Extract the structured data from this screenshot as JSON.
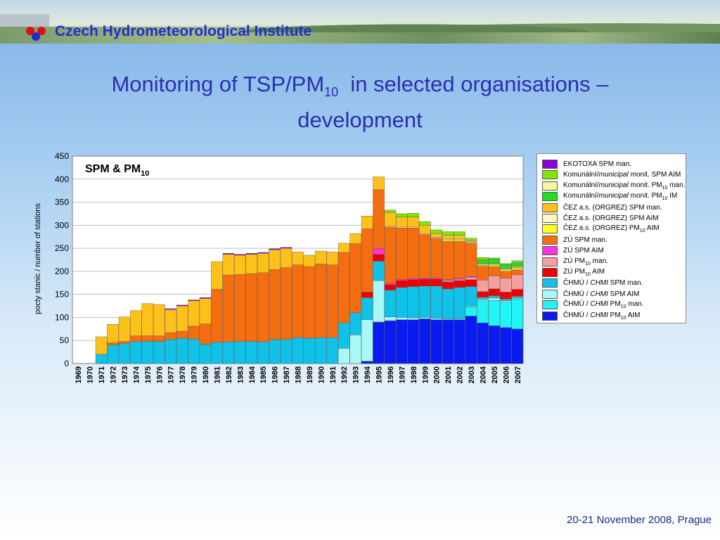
{
  "header": {
    "institute": "Czech Hydrometeorological Institute"
  },
  "title": {
    "line1_a": "Monitoring of TSP/PM",
    "line1_sub": "10",
    "line1_b": "in selected organisations –",
    "line2": "development"
  },
  "footer": {
    "text": "20-21 November 2008, Prague"
  },
  "legend_colors": {
    "EKOTOXA SPM man.": "#8b00d9",
    "Komunální/municipal monit. SPM AIM": "#80e800",
    "Komunální/municipal monit. PM10 man.": "#f2f8a0",
    "Komunální/municipal monit. PM10 IM": "#22dd22",
    "ČEZ a.s. (ORGREZ) SPM man.": "#fdc11a",
    "ČEZ a.s. (ORGREZ) SPM AIM": "#fdf9c8",
    "ČEZ a.s. (ORGREZ) PM10 AIM": "#ffff22",
    "ZÚ SPM man.": "#f46d10",
    "ZÚ SPM AIM": "#ff33dd",
    "ZÚ PM10 man.": "#f5a0a0",
    "ZÚ PM10 AIM": "#ee0000",
    "ČHMÚ / CHMI SPM man.": "#10c2e8",
    "ČHMÚ / CHMI SPM AIM": "#a8f8f8",
    "ČHMÚ / CHMI PM10 man.": "#20f4f4",
    "ČHMÚ / CHMI PM10 AIM": "#0a1bef"
  },
  "chart_data": {
    "type": "bar",
    "stacked": true,
    "title": "SPM & PM",
    "title_sub": "10",
    "xlabel": "",
    "ylabel": "pocty stanic / number of stations",
    "ylim": [
      0,
      450
    ],
    "yticks": [
      0,
      50,
      100,
      150,
      200,
      250,
      300,
      350,
      400,
      450
    ],
    "grid": true,
    "legend_position": "right",
    "categories": [
      "1969",
      "1970",
      "1971",
      "1972",
      "1973",
      "1974",
      "1975",
      "1976",
      "1977",
      "1978",
      "1979",
      "1980",
      "1981",
      "1982",
      "1983",
      "1984",
      "1985",
      "1986",
      "1987",
      "1988",
      "1989",
      "1990",
      "1991",
      "1992",
      "1993",
      "1994",
      "1995",
      "1996",
      "1997",
      "1998",
      "1999",
      "2000",
      "2001",
      "2002",
      "2003",
      "2004",
      "2005",
      "2006",
      "2007"
    ],
    "legend": [
      {
        "name": "EKOTOXA SPM man.",
        "pre": "EKOTOXA SPM man.",
        "it": "",
        "post": "",
        "sub": "",
        "post2": ""
      },
      {
        "name": "Komunální/municipal monit. SPM AIM",
        "pre": "Komunální/",
        "it": "municipal",
        "post": " monit. SPM AIM",
        "sub": "",
        "post2": ""
      },
      {
        "name": "Komunální/municipal monit. PM10 man.",
        "pre": "Komunální/",
        "it": "municipal",
        "post": " monit. PM",
        "sub": "10",
        "post2": " man."
      },
      {
        "name": "Komunální/municipal monit. PM10 IM",
        "pre": "Komunální/",
        "it": "municipal",
        "post": " monit. PM",
        "sub": "10",
        "post2": " IM"
      },
      {
        "name": "ČEZ a.s. (ORGREZ) SPM man.",
        "pre": "ČEZ a.s. (ORGREZ) SPM man.",
        "it": "",
        "post": "",
        "sub": "",
        "post2": ""
      },
      {
        "name": "ČEZ a.s. (ORGREZ) SPM AIM",
        "pre": "ČEZ a.s. (ORGREZ) SPM AIM",
        "it": "",
        "post": "",
        "sub": "",
        "post2": ""
      },
      {
        "name": "ČEZ a.s. (ORGREZ) PM10 AIM",
        "pre": "ČEZ a.s. (ORGREZ) PM",
        "it": "",
        "post": "",
        "sub": "10",
        "post2": " AIM"
      },
      {
        "name": "ZÚ SPM man.",
        "pre": "ZÚ SPM man.",
        "it": "",
        "post": "",
        "sub": "",
        "post2": ""
      },
      {
        "name": "ZÚ SPM AIM",
        "pre": "ZÚ SPM AIM",
        "it": "",
        "post": "",
        "sub": "",
        "post2": ""
      },
      {
        "name": "ZÚ PM10 man.",
        "pre": "ZÚ PM",
        "it": "",
        "post": "",
        "sub": "10",
        "post2": " man."
      },
      {
        "name": "ZÚ PM10 AIM",
        "pre": "ZÚ PM",
        "it": "",
        "post": "",
        "sub": "10",
        "post2": " AIM"
      },
      {
        "name": "ČHMÚ / CHMI SPM man.",
        "pre": "ČHMÚ / ",
        "it": "CHMI",
        "post": "  SPM man.",
        "sub": "",
        "post2": ""
      },
      {
        "name": "ČHMÚ / CHMI SPM AIM",
        "pre": "ČHMÚ / ",
        "it": "CHMI",
        "post": "  SPM AIM",
        "sub": "",
        "post2": ""
      },
      {
        "name": "ČHMÚ / CHMI PM10 man.",
        "pre": "ČHMÚ / ",
        "it": "CHMI",
        "post": " PM",
        "sub": "10",
        "post2": " man."
      },
      {
        "name": "ČHMÚ / CHMI PM10 AIM",
        "pre": "ČHMÚ / ",
        "it": "CHMI",
        "post": " PM",
        "sub": "10",
        "post2": " AIM"
      }
    ],
    "series": [
      {
        "name": "ČHMÚ / CHMI PM10 AIM",
        "values": [
          0,
          0,
          0,
          0,
          0,
          0,
          0,
          0,
          0,
          0,
          0,
          0,
          0,
          0,
          0,
          0,
          0,
          0,
          0,
          0,
          0,
          0,
          0,
          0,
          0,
          5,
          90,
          93,
          95,
          95,
          97,
          95,
          95,
          95,
          103,
          88,
          82,
          78,
          75
        ]
      },
      {
        "name": "ČHMÚ / CHMI PM10 man.",
        "values": [
          0,
          0,
          0,
          0,
          0,
          0,
          0,
          0,
          0,
          0,
          0,
          0,
          0,
          0,
          0,
          0,
          0,
          0,
          0,
          0,
          0,
          0,
          0,
          0,
          0,
          0,
          0,
          0,
          0,
          0,
          0,
          0,
          0,
          0,
          20,
          48,
          55,
          55,
          65
        ]
      },
      {
        "name": "ČHMÚ / CHMI SPM AIM",
        "values": [
          0,
          0,
          0,
          0,
          0,
          0,
          0,
          0,
          0,
          0,
          0,
          0,
          0,
          0,
          0,
          0,
          0,
          0,
          0,
          0,
          0,
          0,
          0,
          33,
          62,
          90,
          90,
          8,
          5,
          4,
          3,
          3,
          2,
          2,
          2,
          3,
          5,
          3,
          2
        ]
      },
      {
        "name": "ČHMÚ / CHMI SPM man.",
        "values": [
          0,
          0,
          20,
          40,
          43,
          48,
          48,
          48,
          52,
          55,
          53,
          42,
          46,
          47,
          48,
          48,
          47,
          52,
          52,
          56,
          55,
          56,
          56,
          55,
          48,
          48,
          42,
          58,
          65,
          68,
          68,
          70,
          65,
          68,
          42,
          5,
          5,
          4,
          4
        ]
      },
      {
        "name": "ZÚ PM10 AIM",
        "values": [
          0,
          0,
          0,
          0,
          0,
          0,
          0,
          0,
          0,
          0,
          0,
          0,
          0,
          0,
          0,
          0,
          0,
          0,
          0,
          0,
          0,
          0,
          0,
          0,
          0,
          12,
          15,
          12,
          15,
          15,
          15,
          15,
          15,
          15,
          15,
          12,
          15,
          15,
          15
        ]
      },
      {
        "name": "ZÚ PM10 man.",
        "values": [
          0,
          0,
          0,
          0,
          0,
          0,
          0,
          0,
          0,
          0,
          0,
          0,
          0,
          0,
          0,
          0,
          0,
          0,
          0,
          0,
          0,
          0,
          0,
          0,
          0,
          0,
          0,
          0,
          0,
          0,
          0,
          0,
          3,
          3,
          5,
          25,
          28,
          30,
          32
        ]
      },
      {
        "name": "ZÚ SPM AIM",
        "values": [
          0,
          0,
          0,
          0,
          0,
          0,
          0,
          0,
          0,
          0,
          0,
          0,
          0,
          0,
          0,
          0,
          0,
          0,
          0,
          0,
          0,
          0,
          0,
          0,
          0,
          0,
          12,
          3,
          2,
          2,
          2,
          2,
          2,
          2,
          2,
          0,
          0,
          0,
          0
        ]
      },
      {
        "name": "ZÚ SPM man.",
        "values": [
          0,
          0,
          0,
          5,
          5,
          12,
          12,
          12,
          15,
          15,
          28,
          44,
          115,
          145,
          145,
          147,
          150,
          152,
          156,
          158,
          155,
          160,
          158,
          153,
          150,
          137,
          128,
          122,
          112,
          110,
          95,
          87,
          83,
          80,
          72,
          30,
          20,
          15,
          10
        ]
      },
      {
        "name": "ČEZ a.s. (ORGREZ) PM10 AIM",
        "values": [
          0,
          0,
          0,
          0,
          0,
          0,
          0,
          0,
          0,
          0,
          0,
          0,
          0,
          0,
          0,
          0,
          0,
          0,
          0,
          0,
          0,
          0,
          0,
          0,
          0,
          0,
          0,
          0,
          0,
          0,
          0,
          0,
          3,
          3,
          2,
          2,
          3,
          3,
          3
        ]
      },
      {
        "name": "ČEZ a.s. (ORGREZ) SPM AIM",
        "values": [
          0,
          0,
          0,
          0,
          0,
          0,
          0,
          0,
          0,
          0,
          0,
          0,
          0,
          0,
          0,
          0,
          0,
          0,
          0,
          0,
          0,
          0,
          0,
          0,
          0,
          0,
          0,
          2,
          2,
          2,
          2,
          2,
          2,
          2,
          2,
          2,
          2,
          2,
          2
        ]
      },
      {
        "name": "ČEZ a.s. (ORGREZ) SPM man.",
        "values": [
          0,
          0,
          38,
          40,
          53,
          55,
          70,
          68,
          50,
          55,
          55,
          55,
          60,
          45,
          42,
          42,
          42,
          43,
          42,
          28,
          25,
          28,
          28,
          20,
          22,
          28,
          28,
          30,
          22,
          22,
          18,
          8,
          8,
          8,
          2,
          2,
          2,
          2,
          3
        ]
      },
      {
        "name": "Komunální/municipal monit. PM10 IM",
        "values": [
          0,
          0,
          0,
          0,
          0,
          0,
          0,
          0,
          0,
          0,
          0,
          0,
          0,
          0,
          0,
          0,
          0,
          0,
          0,
          0,
          0,
          0,
          0,
          0,
          0,
          0,
          0,
          0,
          0,
          0,
          0,
          0,
          0,
          0,
          0,
          8,
          10,
          8,
          8
        ]
      },
      {
        "name": "Komunální/municipal monit. PM10 man.",
        "values": [
          0,
          0,
          0,
          0,
          0,
          0,
          0,
          0,
          0,
          0,
          0,
          0,
          0,
          0,
          0,
          0,
          0,
          0,
          0,
          0,
          0,
          0,
          0,
          0,
          0,
          0,
          0,
          0,
          0,
          0,
          0,
          0,
          0,
          0,
          0,
          0,
          0,
          0,
          2
        ]
      },
      {
        "name": "Komunální/municipal monit. SPM AIM",
        "values": [
          0,
          0,
          0,
          0,
          0,
          0,
          0,
          0,
          0,
          0,
          0,
          0,
          0,
          0,
          0,
          0,
          0,
          0,
          0,
          0,
          0,
          0,
          0,
          0,
          0,
          0,
          0,
          5,
          7,
          8,
          8,
          8,
          8,
          8,
          5,
          5,
          2,
          2,
          2
        ]
      },
      {
        "name": "EKOTOXA SPM man.",
        "values": [
          0,
          0,
          0,
          0,
          0,
          0,
          0,
          0,
          2,
          2,
          2,
          2,
          0,
          2,
          2,
          2,
          2,
          2,
          2,
          0,
          0,
          0,
          0,
          0,
          0,
          0,
          0,
          0,
          0,
          0,
          0,
          0,
          0,
          0,
          0,
          0,
          0,
          0,
          0
        ]
      }
    ]
  }
}
